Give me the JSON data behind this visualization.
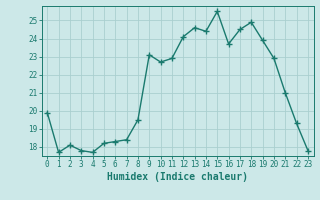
{
  "xlabel": "Humidex (Indice chaleur)",
  "ylabel": "",
  "x": [
    0,
    1,
    2,
    3,
    4,
    5,
    6,
    7,
    8,
    9,
    10,
    11,
    12,
    13,
    14,
    15,
    16,
    17,
    18,
    19,
    20,
    21,
    22,
    23
  ],
  "y": [
    19.9,
    17.7,
    18.1,
    17.8,
    17.7,
    18.2,
    18.3,
    18.4,
    19.5,
    23.1,
    22.7,
    22.9,
    24.1,
    24.6,
    24.4,
    25.5,
    23.7,
    24.5,
    24.9,
    23.9,
    22.9,
    21.0,
    19.3,
    17.8
  ],
  "line_color": "#1a7a6e",
  "marker": "D",
  "marker_size": 2.0,
  "line_width": 1.0,
  "bg_color": "#cce8e8",
  "grid_color": "#aacfcf",
  "tick_color": "#1a7a6e",
  "label_color": "#1a7a6e",
  "ylim": [
    17.5,
    25.8
  ],
  "yticks": [
    18,
    19,
    20,
    21,
    22,
    23,
    24,
    25
  ],
  "xlim": [
    -0.5,
    23.5
  ],
  "axis_fontsize": 6.5,
  "tick_fontsize": 5.5,
  "xlabel_fontsize": 7.0
}
